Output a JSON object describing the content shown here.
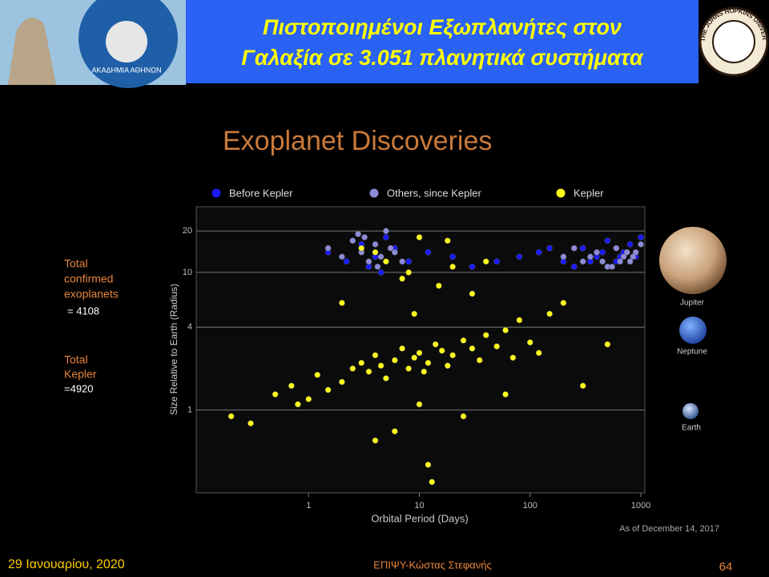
{
  "header": {
    "title_lines": [
      "Πιστοποιημένοι Εξωπλανήτες στον",
      "Γαλαξία σε 3.051 πλανητικά συστήματα"
    ],
    "left_logo_text": "ΑΚΑΔΗΜΙΑ ΑΘΗΝΩΝ",
    "right_logo_text": "THE JOHNS HOPKINS UNIVERSITY"
  },
  "sidebar": {
    "confirmed_label": [
      "Total",
      "confirmed",
      "exoplanets"
    ],
    "confirmed_value": "= 4108",
    "kepler_label": [
      "Total",
      "Kepler"
    ],
    "kepler_value": "=4920"
  },
  "chart_data": {
    "type": "scatter",
    "title": "Exoplanet Discoveries",
    "xlabel": "Orbital Period (Days)",
    "ylabel": "Size Relative to Earth (Radius)",
    "note": "As of December 14, 2017",
    "xscale": "log",
    "yscale": "log",
    "grid": true,
    "legend": "top",
    "xlim": [
      0.1,
      1000
    ],
    "ylim": [
      0.25,
      30
    ],
    "xticks": [
      1,
      10,
      100,
      1000
    ],
    "yticks": [
      1,
      4,
      10,
      20
    ],
    "series": [
      {
        "name": "Before Kepler",
        "color": "#1a1aff",
        "x": [
          1.5,
          2.2,
          3,
          3.5,
          4,
          5,
          6,
          8,
          12,
          20,
          30,
          50,
          80,
          120,
          200,
          300,
          400,
          500,
          600,
          700,
          800,
          900,
          1000,
          250,
          150,
          350,
          450,
          650,
          2.8,
          4.5
        ],
        "y": [
          14,
          12,
          16,
          11,
          13,
          18,
          15,
          12,
          14,
          13,
          11,
          12,
          13,
          14,
          12,
          15,
          13,
          17,
          12,
          14,
          16,
          13,
          18,
          11,
          15,
          12,
          14,
          13,
          19,
          10
        ]
      },
      {
        "name": "Others, since Kepler",
        "color": "#8c8cd9",
        "x": [
          1.5,
          2,
          2.5,
          3,
          3.5,
          4,
          4.5,
          5,
          6,
          7,
          3.2,
          4.2,
          5.5,
          2.8,
          200,
          300,
          400,
          500,
          600,
          700,
          800,
          900,
          1000,
          350,
          450,
          550,
          750,
          850,
          250,
          650
        ],
        "y": [
          15,
          13,
          17,
          14,
          12,
          16,
          13,
          20,
          14,
          12,
          18,
          11,
          15,
          19,
          13,
          12,
          14,
          11,
          15,
          13,
          12,
          14,
          16,
          13,
          12,
          11,
          14,
          13,
          15,
          12
        ]
      },
      {
        "name": "Kepler",
        "color": "#ffff1a",
        "x": [
          0.2,
          0.3,
          0.5,
          0.7,
          0.8,
          1,
          1.2,
          1.5,
          2,
          2.5,
          3,
          3.5,
          4,
          4.5,
          5,
          6,
          7,
          8,
          9,
          10,
          11,
          12,
          14,
          16,
          18,
          20,
          25,
          30,
          35,
          40,
          50,
          60,
          70,
          80,
          100,
          120,
          150,
          200,
          300,
          500,
          3,
          5,
          8,
          10,
          15,
          20,
          4,
          6,
          12,
          25,
          2,
          9,
          13,
          30,
          4,
          7,
          40,
          60,
          10,
          18
        ],
        "y": [
          0.9,
          0.8,
          1.3,
          1.5,
          1.1,
          1.2,
          1.8,
          1.4,
          1.6,
          2.0,
          2.2,
          1.9,
          2.5,
          2.1,
          1.7,
          2.3,
          2.8,
          2.0,
          2.4,
          2.6,
          1.9,
          2.2,
          3.0,
          2.7,
          2.1,
          2.5,
          3.2,
          2.8,
          2.3,
          3.5,
          2.9,
          3.8,
          2.4,
          4.5,
          3.1,
          2.6,
          5.0,
          6.0,
          1.5,
          3.0,
          15,
          12,
          10,
          18,
          8,
          11,
          0.6,
          0.7,
          0.4,
          0.9,
          6,
          5,
          0.3,
          7,
          14,
          9,
          12,
          1.3,
          1.1,
          17
        ]
      }
    ]
  },
  "planets": [
    "Jupiter",
    "Neptune",
    "Earth"
  ],
  "footer": {
    "date": "29 Ιανουαρίου, 2020",
    "author": "ΕΠΙΨΥ-Κώστας Στεφανής",
    "page": "64"
  }
}
